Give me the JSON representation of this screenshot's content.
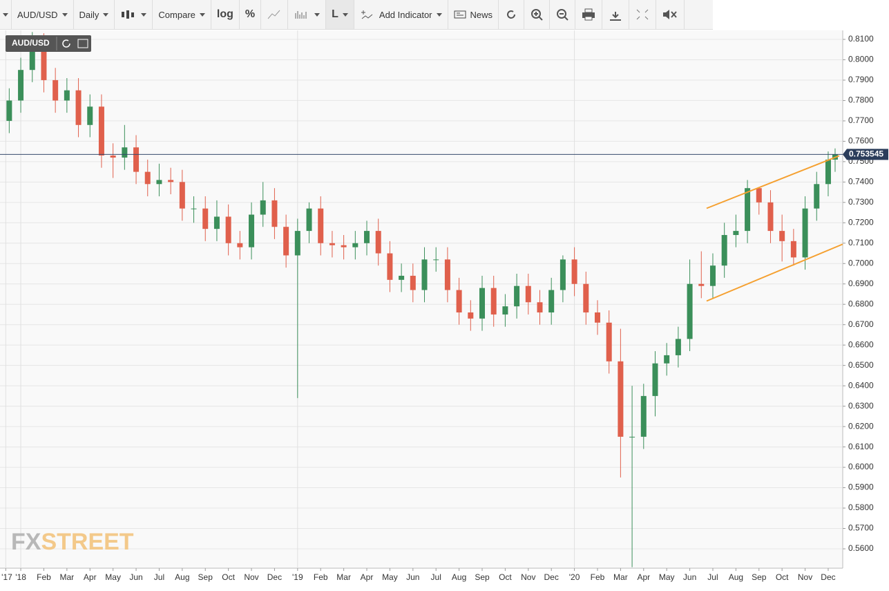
{
  "toolbar": {
    "symbol": "AUD/USD",
    "interval": "Daily",
    "compare": "Compare",
    "log": "log",
    "percent": "%",
    "line_type": "L",
    "add_indicator": "Add Indicator",
    "news": "News"
  },
  "chart_data": {
    "type": "candlestick",
    "symbol_badge": "AUD/USD",
    "watermark": {
      "first": "FX",
      "second": "STREET"
    },
    "x": [
      -0.5,
      0,
      0.5,
      1,
      1.5,
      2,
      2.5,
      3,
      3.5,
      4,
      4.5,
      5,
      5.5,
      6,
      6.5,
      7,
      7.5,
      8,
      8.5,
      9,
      9.5,
      10,
      10.5,
      11,
      11.5,
      12,
      12.5,
      13,
      13.5,
      14,
      14.5,
      15,
      15.5,
      16,
      16.5,
      17,
      17.5,
      18,
      18.5,
      19,
      19.5,
      20,
      20.5,
      21,
      21.5,
      22,
      22.5,
      23,
      23.5,
      24,
      24.5,
      25,
      25.5,
      26,
      26.5,
      27,
      27.5,
      28,
      28.5,
      29,
      29.5,
      30,
      30.5,
      31,
      31.5,
      32,
      32.5,
      33,
      33.5,
      34,
      34.5,
      35,
      35.3
    ],
    "open": [
      0.77,
      0.78,
      0.795,
      0.81,
      0.79,
      0.78,
      0.785,
      0.768,
      0.777,
      0.753,
      0.752,
      0.757,
      0.745,
      0.739,
      0.741,
      0.74,
      0.727,
      0.727,
      0.717,
      0.723,
      0.71,
      0.708,
      0.724,
      0.731,
      0.718,
      0.704,
      0.716,
      0.727,
      0.71,
      0.709,
      0.708,
      0.71,
      0.716,
      0.705,
      0.692,
      0.694,
      0.687,
      0.702,
      0.702,
      0.687,
      0.676,
      0.673,
      0.688,
      0.675,
      0.679,
      0.689,
      0.681,
      0.676,
      0.687,
      0.702,
      0.69,
      0.676,
      0.671,
      0.652,
      0.615,
      0.615,
      0.635,
      0.651,
      0.655,
      0.663,
      0.69,
      0.689,
      0.699,
      0.714,
      0.716,
      0.737,
      0.73,
      0.716,
      0.711,
      0.703,
      0.727,
      0.739,
      0.751
    ],
    "high": [
      0.786,
      0.801,
      0.8136,
      0.813,
      0.796,
      0.791,
      0.791,
      0.783,
      0.783,
      0.759,
      0.768,
      0.763,
      0.751,
      0.749,
      0.747,
      0.746,
      0.733,
      0.733,
      0.731,
      0.729,
      0.716,
      0.73,
      0.74,
      0.737,
      0.724,
      0.722,
      0.73,
      0.733,
      0.716,
      0.714,
      0.716,
      0.721,
      0.722,
      0.711,
      0.7,
      0.7,
      0.708,
      0.708,
      0.708,
      0.693,
      0.682,
      0.694,
      0.694,
      0.685,
      0.695,
      0.695,
      0.687,
      0.693,
      0.704,
      0.708,
      0.696,
      0.682,
      0.677,
      0.668,
      0.64,
      0.641,
      0.657,
      0.661,
      0.669,
      0.702,
      0.706,
      0.705,
      0.72,
      0.724,
      0.741,
      0.737,
      0.736,
      0.724,
      0.717,
      0.733,
      0.745,
      0.755,
      0.7565
    ],
    "low": [
      0.764,
      0.774,
      0.789,
      0.784,
      0.774,
      0.774,
      0.762,
      0.762,
      0.747,
      0.742,
      0.746,
      0.739,
      0.733,
      0.733,
      0.734,
      0.721,
      0.72,
      0.711,
      0.711,
      0.704,
      0.702,
      0.702,
      0.718,
      0.712,
      0.698,
      0.634,
      0.71,
      0.704,
      0.703,
      0.702,
      0.702,
      0.704,
      0.699,
      0.686,
      0.686,
      0.681,
      0.681,
      0.696,
      0.681,
      0.67,
      0.667,
      0.667,
      0.669,
      0.669,
      0.673,
      0.675,
      0.67,
      0.67,
      0.681,
      0.684,
      0.67,
      0.665,
      0.646,
      0.595,
      0.551,
      0.609,
      0.625,
      0.645,
      0.649,
      0.657,
      0.683,
      0.683,
      0.693,
      0.708,
      0.71,
      0.724,
      0.71,
      0.701,
      0.699,
      0.697,
      0.721,
      0.733,
      0.745
    ],
    "close": [
      0.78,
      0.795,
      0.81,
      0.79,
      0.78,
      0.785,
      0.768,
      0.777,
      0.753,
      0.752,
      0.757,
      0.745,
      0.739,
      0.741,
      0.74,
      0.727,
      0.727,
      0.717,
      0.723,
      0.71,
      0.708,
      0.724,
      0.731,
      0.718,
      0.704,
      0.716,
      0.727,
      0.71,
      0.709,
      0.708,
      0.71,
      0.716,
      0.705,
      0.692,
      0.694,
      0.687,
      0.702,
      0.702,
      0.687,
      0.676,
      0.673,
      0.688,
      0.675,
      0.679,
      0.689,
      0.681,
      0.676,
      0.687,
      0.702,
      0.69,
      0.676,
      0.671,
      0.652,
      0.615,
      0.615,
      0.635,
      0.651,
      0.655,
      0.663,
      0.69,
      0.689,
      0.699,
      0.714,
      0.716,
      0.737,
      0.73,
      0.716,
      0.711,
      0.703,
      0.727,
      0.739,
      0.751,
      0.7535
    ],
    "up_color": "#3b8f5a",
    "down_color": "#e0604c",
    "last_price": {
      "value": 0.753545,
      "label": "0.753545"
    },
    "trend_lines": [
      {
        "x": [
          29.73,
          35.48
        ],
        "y": [
          0.7271,
          0.7529
        ],
        "color": "#f5a030"
      },
      {
        "x": [
          29.73,
          35.63
        ],
        "y": [
          0.6816,
          0.7095
        ],
        "color": "#f5a030"
      }
    ],
    "xlim": [
      -0.9,
      35.63
    ],
    "ylim": [
      0.5505,
      0.8144
    ],
    "grid": true,
    "xticks": [
      {
        "value": -0.65,
        "label": "'17"
      },
      {
        "value": 0,
        "label": "'18"
      },
      {
        "value": 1,
        "label": "Feb"
      },
      {
        "value": 2,
        "label": "Mar"
      },
      {
        "value": 3,
        "label": "Apr"
      },
      {
        "value": 4,
        "label": "May"
      },
      {
        "value": 5,
        "label": "Jun"
      },
      {
        "value": 6,
        "label": "Jul"
      },
      {
        "value": 7,
        "label": "Aug"
      },
      {
        "value": 8,
        "label": "Sep"
      },
      {
        "value": 9,
        "label": "Oct"
      },
      {
        "value": 10,
        "label": "Nov"
      },
      {
        "value": 11,
        "label": "Dec"
      },
      {
        "value": 12,
        "label": "'19"
      },
      {
        "value": 13,
        "label": "Feb"
      },
      {
        "value": 14,
        "label": "Mar"
      },
      {
        "value": 15,
        "label": "Apr"
      },
      {
        "value": 16,
        "label": "May"
      },
      {
        "value": 17,
        "label": "Jun"
      },
      {
        "value": 18,
        "label": "Jul"
      },
      {
        "value": 19,
        "label": "Aug"
      },
      {
        "value": 20,
        "label": "Sep"
      },
      {
        "value": 21,
        "label": "Oct"
      },
      {
        "value": 22,
        "label": "Nov"
      },
      {
        "value": 23,
        "label": "Dec"
      },
      {
        "value": 24,
        "label": "'20"
      },
      {
        "value": 25,
        "label": "Feb"
      },
      {
        "value": 26,
        "label": "Mar"
      },
      {
        "value": 27,
        "label": "Apr"
      },
      {
        "value": 28,
        "label": "May"
      },
      {
        "value": 29,
        "label": "Jun"
      },
      {
        "value": 30,
        "label": "Jul"
      },
      {
        "value": 31,
        "label": "Aug"
      },
      {
        "value": 32,
        "label": "Sep"
      },
      {
        "value": 33,
        "label": "Oct"
      },
      {
        "value": 34,
        "label": "Nov"
      },
      {
        "value": 35,
        "label": "Dec"
      }
    ],
    "yticks": [
      {
        "value": 0.56,
        "label": "0.5600"
      },
      {
        "value": 0.57,
        "label": "0.5700"
      },
      {
        "value": 0.58,
        "label": "0.5800"
      },
      {
        "value": 0.59,
        "label": "0.5900"
      },
      {
        "value": 0.6,
        "label": "0.6000"
      },
      {
        "value": 0.61,
        "label": "0.6100"
      },
      {
        "value": 0.62,
        "label": "0.6200"
      },
      {
        "value": 0.63,
        "label": "0.6300"
      },
      {
        "value": 0.64,
        "label": "0.6400"
      },
      {
        "value": 0.65,
        "label": "0.6500"
      },
      {
        "value": 0.66,
        "label": "0.6600"
      },
      {
        "value": 0.67,
        "label": "0.6700"
      },
      {
        "value": 0.68,
        "label": "0.6800"
      },
      {
        "value": 0.69,
        "label": "0.6900"
      },
      {
        "value": 0.7,
        "label": "0.7000"
      },
      {
        "value": 0.71,
        "label": "0.7100"
      },
      {
        "value": 0.72,
        "label": "0.7200"
      },
      {
        "value": 0.73,
        "label": "0.7300"
      },
      {
        "value": 0.74,
        "label": "0.7400"
      },
      {
        "value": 0.75,
        "label": "0.7500"
      },
      {
        "value": 0.76,
        "label": "0.7600"
      },
      {
        "value": 0.77,
        "label": "0.7700"
      },
      {
        "value": 0.78,
        "label": "0.7800"
      },
      {
        "value": 0.79,
        "label": "0.7900"
      },
      {
        "value": 0.8,
        "label": "0.8000"
      },
      {
        "value": 0.81,
        "label": "0.8100"
      }
    ]
  }
}
